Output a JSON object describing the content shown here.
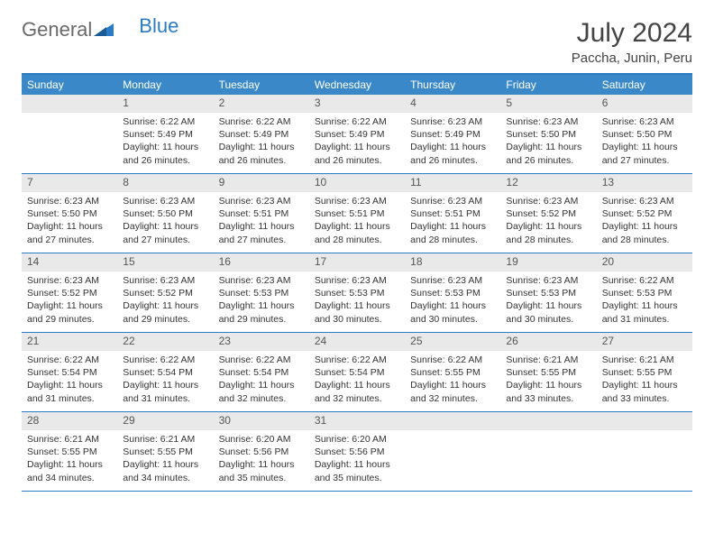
{
  "brand": {
    "part1": "General",
    "part2": "Blue"
  },
  "title": "July 2024",
  "subtitle": "Paccha, Junin, Peru",
  "colors": {
    "header_bg": "#3b88c9",
    "header_text": "#ffffff",
    "border": "#2b7cc4",
    "daynum_bg": "#e9e9e9",
    "body_text": "#333333",
    "title_text": "#444444",
    "logo_gray": "#6a6a6a",
    "logo_blue": "#2b7cc4"
  },
  "day_names": [
    "Sunday",
    "Monday",
    "Tuesday",
    "Wednesday",
    "Thursday",
    "Friday",
    "Saturday"
  ],
  "weeks": [
    {
      "nums": [
        "",
        "1",
        "2",
        "3",
        "4",
        "5",
        "6"
      ],
      "cells": [
        {
          "sunrise": "",
          "sunset": "",
          "daylight": ""
        },
        {
          "sunrise": "Sunrise: 6:22 AM",
          "sunset": "Sunset: 5:49 PM",
          "daylight": "Daylight: 11 hours and 26 minutes."
        },
        {
          "sunrise": "Sunrise: 6:22 AM",
          "sunset": "Sunset: 5:49 PM",
          "daylight": "Daylight: 11 hours and 26 minutes."
        },
        {
          "sunrise": "Sunrise: 6:22 AM",
          "sunset": "Sunset: 5:49 PM",
          "daylight": "Daylight: 11 hours and 26 minutes."
        },
        {
          "sunrise": "Sunrise: 6:23 AM",
          "sunset": "Sunset: 5:49 PM",
          "daylight": "Daylight: 11 hours and 26 minutes."
        },
        {
          "sunrise": "Sunrise: 6:23 AM",
          "sunset": "Sunset: 5:50 PM",
          "daylight": "Daylight: 11 hours and 26 minutes."
        },
        {
          "sunrise": "Sunrise: 6:23 AM",
          "sunset": "Sunset: 5:50 PM",
          "daylight": "Daylight: 11 hours and 27 minutes."
        }
      ]
    },
    {
      "nums": [
        "7",
        "8",
        "9",
        "10",
        "11",
        "12",
        "13"
      ],
      "cells": [
        {
          "sunrise": "Sunrise: 6:23 AM",
          "sunset": "Sunset: 5:50 PM",
          "daylight": "Daylight: 11 hours and 27 minutes."
        },
        {
          "sunrise": "Sunrise: 6:23 AM",
          "sunset": "Sunset: 5:50 PM",
          "daylight": "Daylight: 11 hours and 27 minutes."
        },
        {
          "sunrise": "Sunrise: 6:23 AM",
          "sunset": "Sunset: 5:51 PM",
          "daylight": "Daylight: 11 hours and 27 minutes."
        },
        {
          "sunrise": "Sunrise: 6:23 AM",
          "sunset": "Sunset: 5:51 PM",
          "daylight": "Daylight: 11 hours and 28 minutes."
        },
        {
          "sunrise": "Sunrise: 6:23 AM",
          "sunset": "Sunset: 5:51 PM",
          "daylight": "Daylight: 11 hours and 28 minutes."
        },
        {
          "sunrise": "Sunrise: 6:23 AM",
          "sunset": "Sunset: 5:52 PM",
          "daylight": "Daylight: 11 hours and 28 minutes."
        },
        {
          "sunrise": "Sunrise: 6:23 AM",
          "sunset": "Sunset: 5:52 PM",
          "daylight": "Daylight: 11 hours and 28 minutes."
        }
      ]
    },
    {
      "nums": [
        "14",
        "15",
        "16",
        "17",
        "18",
        "19",
        "20"
      ],
      "cells": [
        {
          "sunrise": "Sunrise: 6:23 AM",
          "sunset": "Sunset: 5:52 PM",
          "daylight": "Daylight: 11 hours and 29 minutes."
        },
        {
          "sunrise": "Sunrise: 6:23 AM",
          "sunset": "Sunset: 5:52 PM",
          "daylight": "Daylight: 11 hours and 29 minutes."
        },
        {
          "sunrise": "Sunrise: 6:23 AM",
          "sunset": "Sunset: 5:53 PM",
          "daylight": "Daylight: 11 hours and 29 minutes."
        },
        {
          "sunrise": "Sunrise: 6:23 AM",
          "sunset": "Sunset: 5:53 PM",
          "daylight": "Daylight: 11 hours and 30 minutes."
        },
        {
          "sunrise": "Sunrise: 6:23 AM",
          "sunset": "Sunset: 5:53 PM",
          "daylight": "Daylight: 11 hours and 30 minutes."
        },
        {
          "sunrise": "Sunrise: 6:23 AM",
          "sunset": "Sunset: 5:53 PM",
          "daylight": "Daylight: 11 hours and 30 minutes."
        },
        {
          "sunrise": "Sunrise: 6:22 AM",
          "sunset": "Sunset: 5:53 PM",
          "daylight": "Daylight: 11 hours and 31 minutes."
        }
      ]
    },
    {
      "nums": [
        "21",
        "22",
        "23",
        "24",
        "25",
        "26",
        "27"
      ],
      "cells": [
        {
          "sunrise": "Sunrise: 6:22 AM",
          "sunset": "Sunset: 5:54 PM",
          "daylight": "Daylight: 11 hours and 31 minutes."
        },
        {
          "sunrise": "Sunrise: 6:22 AM",
          "sunset": "Sunset: 5:54 PM",
          "daylight": "Daylight: 11 hours and 31 minutes."
        },
        {
          "sunrise": "Sunrise: 6:22 AM",
          "sunset": "Sunset: 5:54 PM",
          "daylight": "Daylight: 11 hours and 32 minutes."
        },
        {
          "sunrise": "Sunrise: 6:22 AM",
          "sunset": "Sunset: 5:54 PM",
          "daylight": "Daylight: 11 hours and 32 minutes."
        },
        {
          "sunrise": "Sunrise: 6:22 AM",
          "sunset": "Sunset: 5:55 PM",
          "daylight": "Daylight: 11 hours and 32 minutes."
        },
        {
          "sunrise": "Sunrise: 6:21 AM",
          "sunset": "Sunset: 5:55 PM",
          "daylight": "Daylight: 11 hours and 33 minutes."
        },
        {
          "sunrise": "Sunrise: 6:21 AM",
          "sunset": "Sunset: 5:55 PM",
          "daylight": "Daylight: 11 hours and 33 minutes."
        }
      ]
    },
    {
      "nums": [
        "28",
        "29",
        "30",
        "31",
        "",
        "",
        ""
      ],
      "cells": [
        {
          "sunrise": "Sunrise: 6:21 AM",
          "sunset": "Sunset: 5:55 PM",
          "daylight": "Daylight: 11 hours and 34 minutes."
        },
        {
          "sunrise": "Sunrise: 6:21 AM",
          "sunset": "Sunset: 5:55 PM",
          "daylight": "Daylight: 11 hours and 34 minutes."
        },
        {
          "sunrise": "Sunrise: 6:20 AM",
          "sunset": "Sunset: 5:56 PM",
          "daylight": "Daylight: 11 hours and 35 minutes."
        },
        {
          "sunrise": "Sunrise: 6:20 AM",
          "sunset": "Sunset: 5:56 PM",
          "daylight": "Daylight: 11 hours and 35 minutes."
        },
        {
          "sunrise": "",
          "sunset": "",
          "daylight": ""
        },
        {
          "sunrise": "",
          "sunset": "",
          "daylight": ""
        },
        {
          "sunrise": "",
          "sunset": "",
          "daylight": ""
        }
      ]
    }
  ]
}
